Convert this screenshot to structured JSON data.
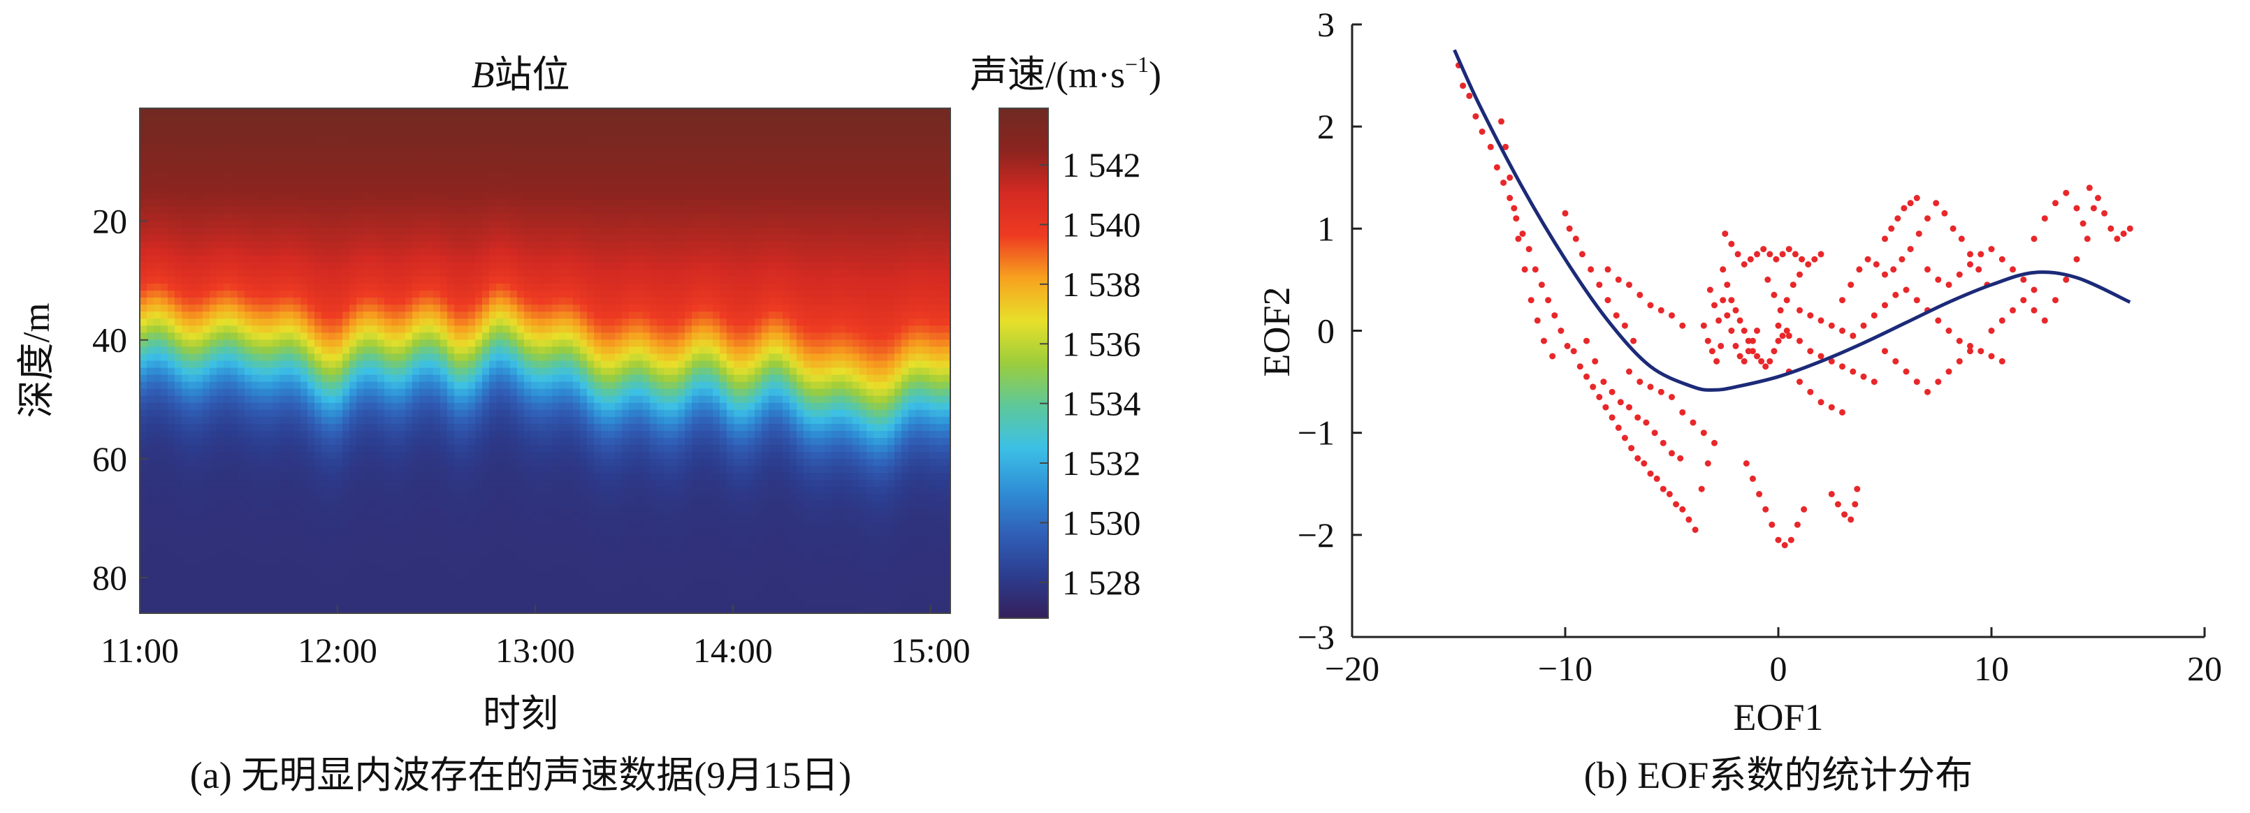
{
  "figure": {
    "caption_a": "(a) 无明显内波存在的声速数据(9月15日)",
    "caption_b": "(b) EOF系数的统计分布"
  },
  "chart_data": [
    {
      "type": "heatmap",
      "title_italic": "B",
      "title_rest": "站位",
      "xlabel": "时刻",
      "ylabel": "深度/m",
      "x_tick_labels": [
        "11:00",
        "12:00",
        "13:00",
        "14:00",
        "15:00"
      ],
      "x_range_hours": [
        11,
        15.1
      ],
      "y_ticks": [
        20,
        40,
        60,
        80
      ],
      "y_range": [
        1,
        86
      ],
      "colorbar": {
        "title": "声速/(m·s",
        "title_sup": "−1",
        "title_end": ")",
        "ticks": [
          1528,
          1530,
          1532,
          1534,
          1536,
          1538,
          1540,
          1542
        ],
        "tick_labels": [
          "1 528",
          "1 530",
          "1 532",
          "1 534",
          "1 536",
          "1 538",
          "1 540",
          "1 542"
        ],
        "range": [
          1526.8,
          1543.9
        ],
        "colors": [
          "#35205c",
          "#2c3d8f",
          "#3060b8",
          "#2f8fd6",
          "#3cc0e6",
          "#5ec89a",
          "#9ccd3c",
          "#e8e02a",
          "#f7a21f",
          "#ee3b22",
          "#d42a22",
          "#8c241f",
          "#6e2a22"
        ]
      },
      "thermocline": {
        "base_depth_m": 44,
        "thickness_m": 11,
        "surface_speed": 1543.7,
        "deep_speed": 1527.6,
        "depth_profile_times": [
          11.0,
          11.2,
          11.4,
          11.6,
          11.8,
          12.0,
          12.2,
          12.4,
          12.6,
          12.8,
          13.0,
          13.2,
          13.4,
          13.6,
          13.8,
          14.0,
          14.2,
          14.4,
          14.6,
          14.8,
          15.0,
          15.1
        ],
        "depth_profile_offsets": [
          -2,
          -2,
          -1,
          -2,
          1,
          3,
          0,
          -1,
          1,
          -2,
          -1,
          2,
          4,
          5,
          3,
          5,
          4,
          6,
          9,
          8,
          6,
          4
        ]
      }
    },
    {
      "type": "scatter",
      "xlabel": "EOF1",
      "ylabel": "EOF2",
      "xlim": [
        -20,
        20
      ],
      "ylim": [
        -3,
        3
      ],
      "x_ticks": [
        -20,
        -10,
        0,
        10,
        20
      ],
      "y_ticks": [
        -3,
        -2,
        -1,
        0,
        1,
        2,
        3
      ],
      "x_tick_labels": [
        "−20",
        "−10",
        "0",
        "10",
        "20"
      ],
      "y_tick_labels": [
        "−3",
        "−2",
        "−1",
        "0",
        "1",
        "2",
        "3"
      ],
      "point_color": "#e8272a",
      "curve_color": "#1c2a78",
      "fit_curve": {
        "x": [
          -15.2,
          -14,
          -12,
          -10,
          -8,
          -6,
          -4,
          -3,
          -2,
          0,
          2,
          4,
          6,
          8,
          10,
          12,
          14,
          16.5
        ],
        "y": [
          2.75,
          2.2,
          1.4,
          0.7,
          0.1,
          -0.35,
          -0.55,
          -0.58,
          -0.55,
          -0.45,
          -0.3,
          -0.12,
          0.08,
          0.28,
          0.45,
          0.57,
          0.52,
          0.28
        ]
      },
      "scatter_points": [
        [
          -15,
          2.6
        ],
        [
          -14.8,
          2.4
        ],
        [
          -14.5,
          2.3
        ],
        [
          -14.2,
          2.1
        ],
        [
          -13.9,
          1.95
        ],
        [
          -13.5,
          1.8
        ],
        [
          -13.2,
          1.6
        ],
        [
          -12.9,
          1.45
        ],
        [
          -12.6,
          1.3
        ],
        [
          -12.3,
          1.1
        ],
        [
          -12.0,
          0.95
        ],
        [
          -11.7,
          0.8
        ],
        [
          -11.4,
          0.6
        ],
        [
          -11.1,
          0.45
        ],
        [
          -10.8,
          0.3
        ],
        [
          -10.5,
          0.15
        ],
        [
          -10.2,
          0.0
        ],
        [
          -9.9,
          -0.15
        ],
        [
          -13,
          2.05
        ],
        [
          -12.8,
          1.8
        ],
        [
          -12.6,
          1.5
        ],
        [
          -12.4,
          1.2
        ],
        [
          -12.2,
          0.9
        ],
        [
          -11.9,
          0.6
        ],
        [
          -11.6,
          0.3
        ],
        [
          -11.3,
          0.1
        ],
        [
          -11.0,
          -0.1
        ],
        [
          -10.6,
          -0.25
        ],
        [
          -10,
          1.15
        ],
        [
          -9.8,
          1.0
        ],
        [
          -9.5,
          0.9
        ],
        [
          -9.2,
          0.75
        ],
        [
          -8.8,
          0.6
        ],
        [
          -8.4,
          0.45
        ],
        [
          -8.0,
          0.3
        ],
        [
          -7.6,
          0.15
        ],
        [
          -7.2,
          0.05
        ],
        [
          -6.8,
          -0.1
        ],
        [
          -9.6,
          -0.2
        ],
        [
          -9.3,
          -0.35
        ],
        [
          -9.0,
          -0.45
        ],
        [
          -8.7,
          -0.55
        ],
        [
          -8.4,
          -0.65
        ],
        [
          -8.1,
          -0.75
        ],
        [
          -7.8,
          -0.85
        ],
        [
          -7.5,
          -0.95
        ],
        [
          -7.2,
          -1.05
        ],
        [
          -6.9,
          -1.15
        ],
        [
          -6.6,
          -1.25
        ],
        [
          -6.3,
          -1.3
        ],
        [
          -6.0,
          -1.4
        ],
        [
          -5.7,
          -1.45
        ],
        [
          -5.4,
          -1.55
        ],
        [
          -5.1,
          -1.6
        ],
        [
          -4.8,
          -1.7
        ],
        [
          -4.5,
          -1.75
        ],
        [
          -4.2,
          -1.85
        ],
        [
          -3.9,
          -1.95
        ],
        [
          -3.6,
          -1.55
        ],
        [
          -3.3,
          -1.3
        ],
        [
          -9.0,
          -0.1
        ],
        [
          -8.6,
          -0.3
        ],
        [
          -8.2,
          -0.5
        ],
        [
          -7.8,
          -0.6
        ],
        [
          -7.4,
          -0.7
        ],
        [
          -7.0,
          -0.75
        ],
        [
          -6.6,
          -0.85
        ],
        [
          -6.2,
          -0.9
        ],
        [
          -5.8,
          -1.0
        ],
        [
          -5.4,
          -1.1
        ],
        [
          -5.0,
          -1.2
        ],
        [
          -4.6,
          -1.25
        ],
        [
          -8.0,
          0.6
        ],
        [
          -7.5,
          0.5
        ],
        [
          -7.0,
          0.45
        ],
        [
          -6.5,
          0.35
        ],
        [
          -6.0,
          0.25
        ],
        [
          -5.5,
          0.2
        ],
        [
          -5.0,
          0.15
        ],
        [
          -4.5,
          0.05
        ],
        [
          -7.0,
          -0.4
        ],
        [
          -6.5,
          -0.5
        ],
        [
          -6.0,
          -0.55
        ],
        [
          -5.5,
          -0.6
        ],
        [
          -5.0,
          -0.65
        ],
        [
          -4.5,
          -0.8
        ],
        [
          -4.0,
          -0.9
        ],
        [
          -3.5,
          -1.0
        ],
        [
          -3.0,
          -1.1
        ],
        [
          -3.2,
          0.4
        ],
        [
          -3.0,
          0.25
        ],
        [
          -2.8,
          0.1
        ],
        [
          -2.6,
          0.3
        ],
        [
          -2.4,
          0.15
        ],
        [
          -2.2,
          0.0
        ],
        [
          -2.0,
          -0.15
        ],
        [
          -1.8,
          -0.25
        ],
        [
          -1.6,
          -0.3
        ],
        [
          -1.4,
          -0.2
        ],
        [
          -1.2,
          -0.1
        ],
        [
          -1.0,
          0.0
        ],
        [
          -2.5,
          0.95
        ],
        [
          -2.2,
          0.85
        ],
        [
          -1.9,
          0.75
        ],
        [
          -1.6,
          0.65
        ],
        [
          -1.3,
          0.7
        ],
        [
          -1.0,
          0.75
        ],
        [
          -0.7,
          0.8
        ],
        [
          -0.4,
          0.75
        ],
        [
          -0.1,
          0.7
        ],
        [
          0.2,
          0.75
        ],
        [
          0.5,
          0.8
        ],
        [
          0.8,
          0.75
        ],
        [
          1.1,
          0.7
        ],
        [
          1.4,
          0.65
        ],
        [
          1.7,
          0.7
        ],
        [
          2.0,
          0.75
        ],
        [
          -2.6,
          0.6
        ],
        [
          -2.4,
          0.45
        ],
        [
          -2.2,
          0.3
        ],
        [
          -2.0,
          0.2
        ],
        [
          -1.8,
          0.1
        ],
        [
          -1.6,
          0.0
        ],
        [
          -1.4,
          -0.1
        ],
        [
          -1.2,
          -0.2
        ],
        [
          -1.0,
          -0.25
        ],
        [
          -0.8,
          -0.3
        ],
        [
          -0.6,
          -0.35
        ],
        [
          -0.4,
          -0.3
        ],
        [
          -0.2,
          -0.2
        ],
        [
          0.0,
          -0.1
        ],
        [
          0.2,
          -0.05
        ],
        [
          0.4,
          0.0
        ],
        [
          -1.5,
          -1.3
        ],
        [
          -1.2,
          -1.45
        ],
        [
          -0.9,
          -1.6
        ],
        [
          -0.6,
          -1.75
        ],
        [
          -0.3,
          -1.9
        ],
        [
          0.0,
          -2.05
        ],
        [
          0.3,
          -2.1
        ],
        [
          0.6,
          -2.05
        ],
        [
          0.9,
          -1.9
        ],
        [
          1.2,
          -1.75
        ],
        [
          2.5,
          -1.6
        ],
        [
          2.8,
          -1.7
        ],
        [
          3.1,
          -1.8
        ],
        [
          3.4,
          -1.85
        ],
        [
          3.6,
          -1.7
        ],
        [
          3.7,
          -1.55
        ],
        [
          0,
          0.05
        ],
        [
          0.5,
          -0.05
        ],
        [
          1.0,
          -0.1
        ],
        [
          1.5,
          -0.2
        ],
        [
          2.0,
          -0.25
        ],
        [
          2.5,
          -0.3
        ],
        [
          3.0,
          -0.35
        ],
        [
          3.5,
          -0.4
        ],
        [
          4.0,
          -0.45
        ],
        [
          4.5,
          -0.5
        ],
        [
          0.5,
          -0.4
        ],
        [
          1.0,
          -0.5
        ],
        [
          1.5,
          -0.6
        ],
        [
          2.0,
          -0.7
        ],
        [
          2.5,
          -0.75
        ],
        [
          3.0,
          -0.8
        ],
        [
          1.0,
          0.2
        ],
        [
          1.5,
          0.15
        ],
        [
          2.0,
          0.1
        ],
        [
          2.5,
          0.05
        ],
        [
          3.0,
          0.0
        ],
        [
          3.5,
          -0.05
        ],
        [
          4.0,
          0.05
        ],
        [
          4.5,
          0.15
        ],
        [
          5.0,
          0.25
        ],
        [
          5.5,
          0.35
        ],
        [
          3.0,
          0.3
        ],
        [
          3.4,
          0.45
        ],
        [
          3.8,
          0.6
        ],
        [
          4.2,
          0.7
        ],
        [
          4.6,
          0.65
        ],
        [
          5.0,
          0.55
        ],
        [
          5.4,
          0.6
        ],
        [
          5.8,
          0.7
        ],
        [
          6.2,
          0.8
        ],
        [
          6.6,
          0.95
        ],
        [
          7.0,
          1.1
        ],
        [
          7.4,
          1.25
        ],
        [
          7.8,
          1.15
        ],
        [
          8.2,
          1.0
        ],
        [
          8.6,
          0.9
        ],
        [
          9.0,
          0.75
        ],
        [
          9.4,
          0.6
        ],
        [
          9.8,
          0.45
        ],
        [
          5.0,
          0.9
        ],
        [
          5.3,
          1.0
        ],
        [
          5.6,
          1.1
        ],
        [
          5.9,
          1.2
        ],
        [
          6.2,
          1.25
        ],
        [
          6.5,
          1.3
        ],
        [
          6.0,
          0.4
        ],
        [
          6.5,
          0.3
        ],
        [
          7.0,
          0.2
        ],
        [
          7.5,
          0.1
        ],
        [
          8.0,
          0.0
        ],
        [
          8.5,
          -0.1
        ],
        [
          9.0,
          -0.15
        ],
        [
          9.5,
          -0.2
        ],
        [
          10.0,
          -0.25
        ],
        [
          10.5,
          -0.3
        ],
        [
          5.0,
          -0.2
        ],
        [
          5.5,
          -0.3
        ],
        [
          6.0,
          -0.4
        ],
        [
          6.5,
          -0.5
        ],
        [
          7.0,
          -0.6
        ],
        [
          7.5,
          -0.5
        ],
        [
          8.0,
          -0.4
        ],
        [
          8.5,
          -0.3
        ],
        [
          9.0,
          -0.2
        ],
        [
          7.0,
          0.6
        ],
        [
          7.5,
          0.5
        ],
        [
          8.0,
          0.45
        ],
        [
          8.5,
          0.55
        ],
        [
          9.0,
          0.65
        ],
        [
          9.5,
          0.75
        ],
        [
          10.0,
          0.8
        ],
        [
          10.5,
          0.7
        ],
        [
          11.0,
          0.6
        ],
        [
          11.5,
          0.5
        ],
        [
          12.0,
          0.4
        ],
        [
          10.0,
          0.0
        ],
        [
          10.5,
          0.1
        ],
        [
          11.0,
          0.2
        ],
        [
          11.5,
          0.3
        ],
        [
          12.0,
          0.2
        ],
        [
          12.5,
          0.1
        ],
        [
          13.0,
          0.3
        ],
        [
          13.5,
          0.5
        ],
        [
          14.0,
          0.7
        ],
        [
          14.5,
          0.9
        ],
        [
          14.8,
          1.2
        ],
        [
          14.6,
          1.4
        ],
        [
          15.0,
          1.3
        ],
        [
          15.3,
          1.15
        ],
        [
          15.6,
          1.0
        ],
        [
          15.9,
          0.9
        ],
        [
          16.2,
          0.95
        ],
        [
          16.5,
          1.0
        ],
        [
          12.0,
          0.9
        ],
        [
          12.5,
          1.1
        ],
        [
          13.0,
          1.25
        ],
        [
          13.5,
          1.35
        ],
        [
          14.0,
          1.2
        ],
        [
          14.3,
          1.05
        ],
        [
          -0.5,
          0.5
        ],
        [
          -0.2,
          0.35
        ],
        [
          0.1,
          0.2
        ],
        [
          0.4,
          0.3
        ],
        [
          0.7,
          0.45
        ],
        [
          1.0,
          0.55
        ],
        [
          -3.5,
          0.05
        ],
        [
          -3.3,
          -0.1
        ],
        [
          -3.1,
          -0.2
        ],
        [
          -2.9,
          -0.3
        ],
        [
          -2.7,
          -0.15
        ]
      ]
    }
  ]
}
